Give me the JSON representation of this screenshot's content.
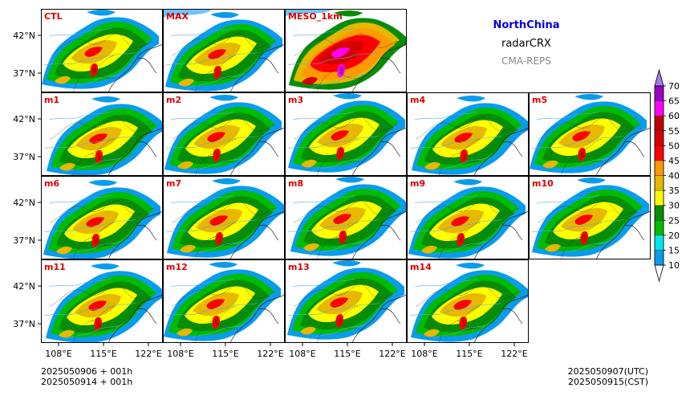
{
  "header": {
    "region": "NorthChina",
    "variable": "radarCRX",
    "model": "CMA-REPS",
    "region_color": "#0000dd",
    "model_color": "#888888"
  },
  "footer": {
    "init_utc": "2025050906  +  001h",
    "init_cst": "2025050914  +  001h",
    "valid_utc": "2025050907(UTC)",
    "valid_cst": "2025050915(CST)"
  },
  "chart_data": {
    "type": "heatmap",
    "panels": [
      {
        "label": "CTL",
        "row": 0,
        "col": 0
      },
      {
        "label": "MAX",
        "row": 0,
        "col": 1
      },
      {
        "label": "MESO_1km",
        "row": 0,
        "col": 2
      },
      {
        "label": "m1",
        "row": 1,
        "col": 0
      },
      {
        "label": "m2",
        "row": 1,
        "col": 1
      },
      {
        "label": "m3",
        "row": 1,
        "col": 2
      },
      {
        "label": "m4",
        "row": 1,
        "col": 3
      },
      {
        "label": "m5",
        "row": 1,
        "col": 4
      },
      {
        "label": "m6",
        "row": 2,
        "col": 0
      },
      {
        "label": "m7",
        "row": 2,
        "col": 1
      },
      {
        "label": "m8",
        "row": 2,
        "col": 2
      },
      {
        "label": "m9",
        "row": 2,
        "col": 3
      },
      {
        "label": "m10",
        "row": 2,
        "col": 4
      },
      {
        "label": "m11",
        "row": 3,
        "col": 0
      },
      {
        "label": "m12",
        "row": 3,
        "col": 1
      },
      {
        "label": "m13",
        "row": 3,
        "col": 2
      },
      {
        "label": "m14",
        "row": 3,
        "col": 3
      }
    ],
    "panel_label_color": "#dd0000",
    "lon_ticks": [
      "108°E",
      "115°E",
      "122°E"
    ],
    "lat_ticks": [
      "42°N",
      "37°N"
    ],
    "colorbar": {
      "levels": [
        "10",
        "15",
        "20",
        "25",
        "30",
        "35",
        "40",
        "45",
        "50",
        "55",
        "60",
        "65",
        "70"
      ],
      "colors": [
        "#0a9cec",
        "#00e5ee",
        "#00bb00",
        "#078c07",
        "#ffff00",
        "#e6b800",
        "#ff9900",
        "#ff0000",
        "#d60000",
        "#c00000",
        "#ff00ff",
        "#9a00c7"
      ],
      "under_color": "#ffffff",
      "over_color": "#a57be8",
      "extend": "both"
    }
  }
}
